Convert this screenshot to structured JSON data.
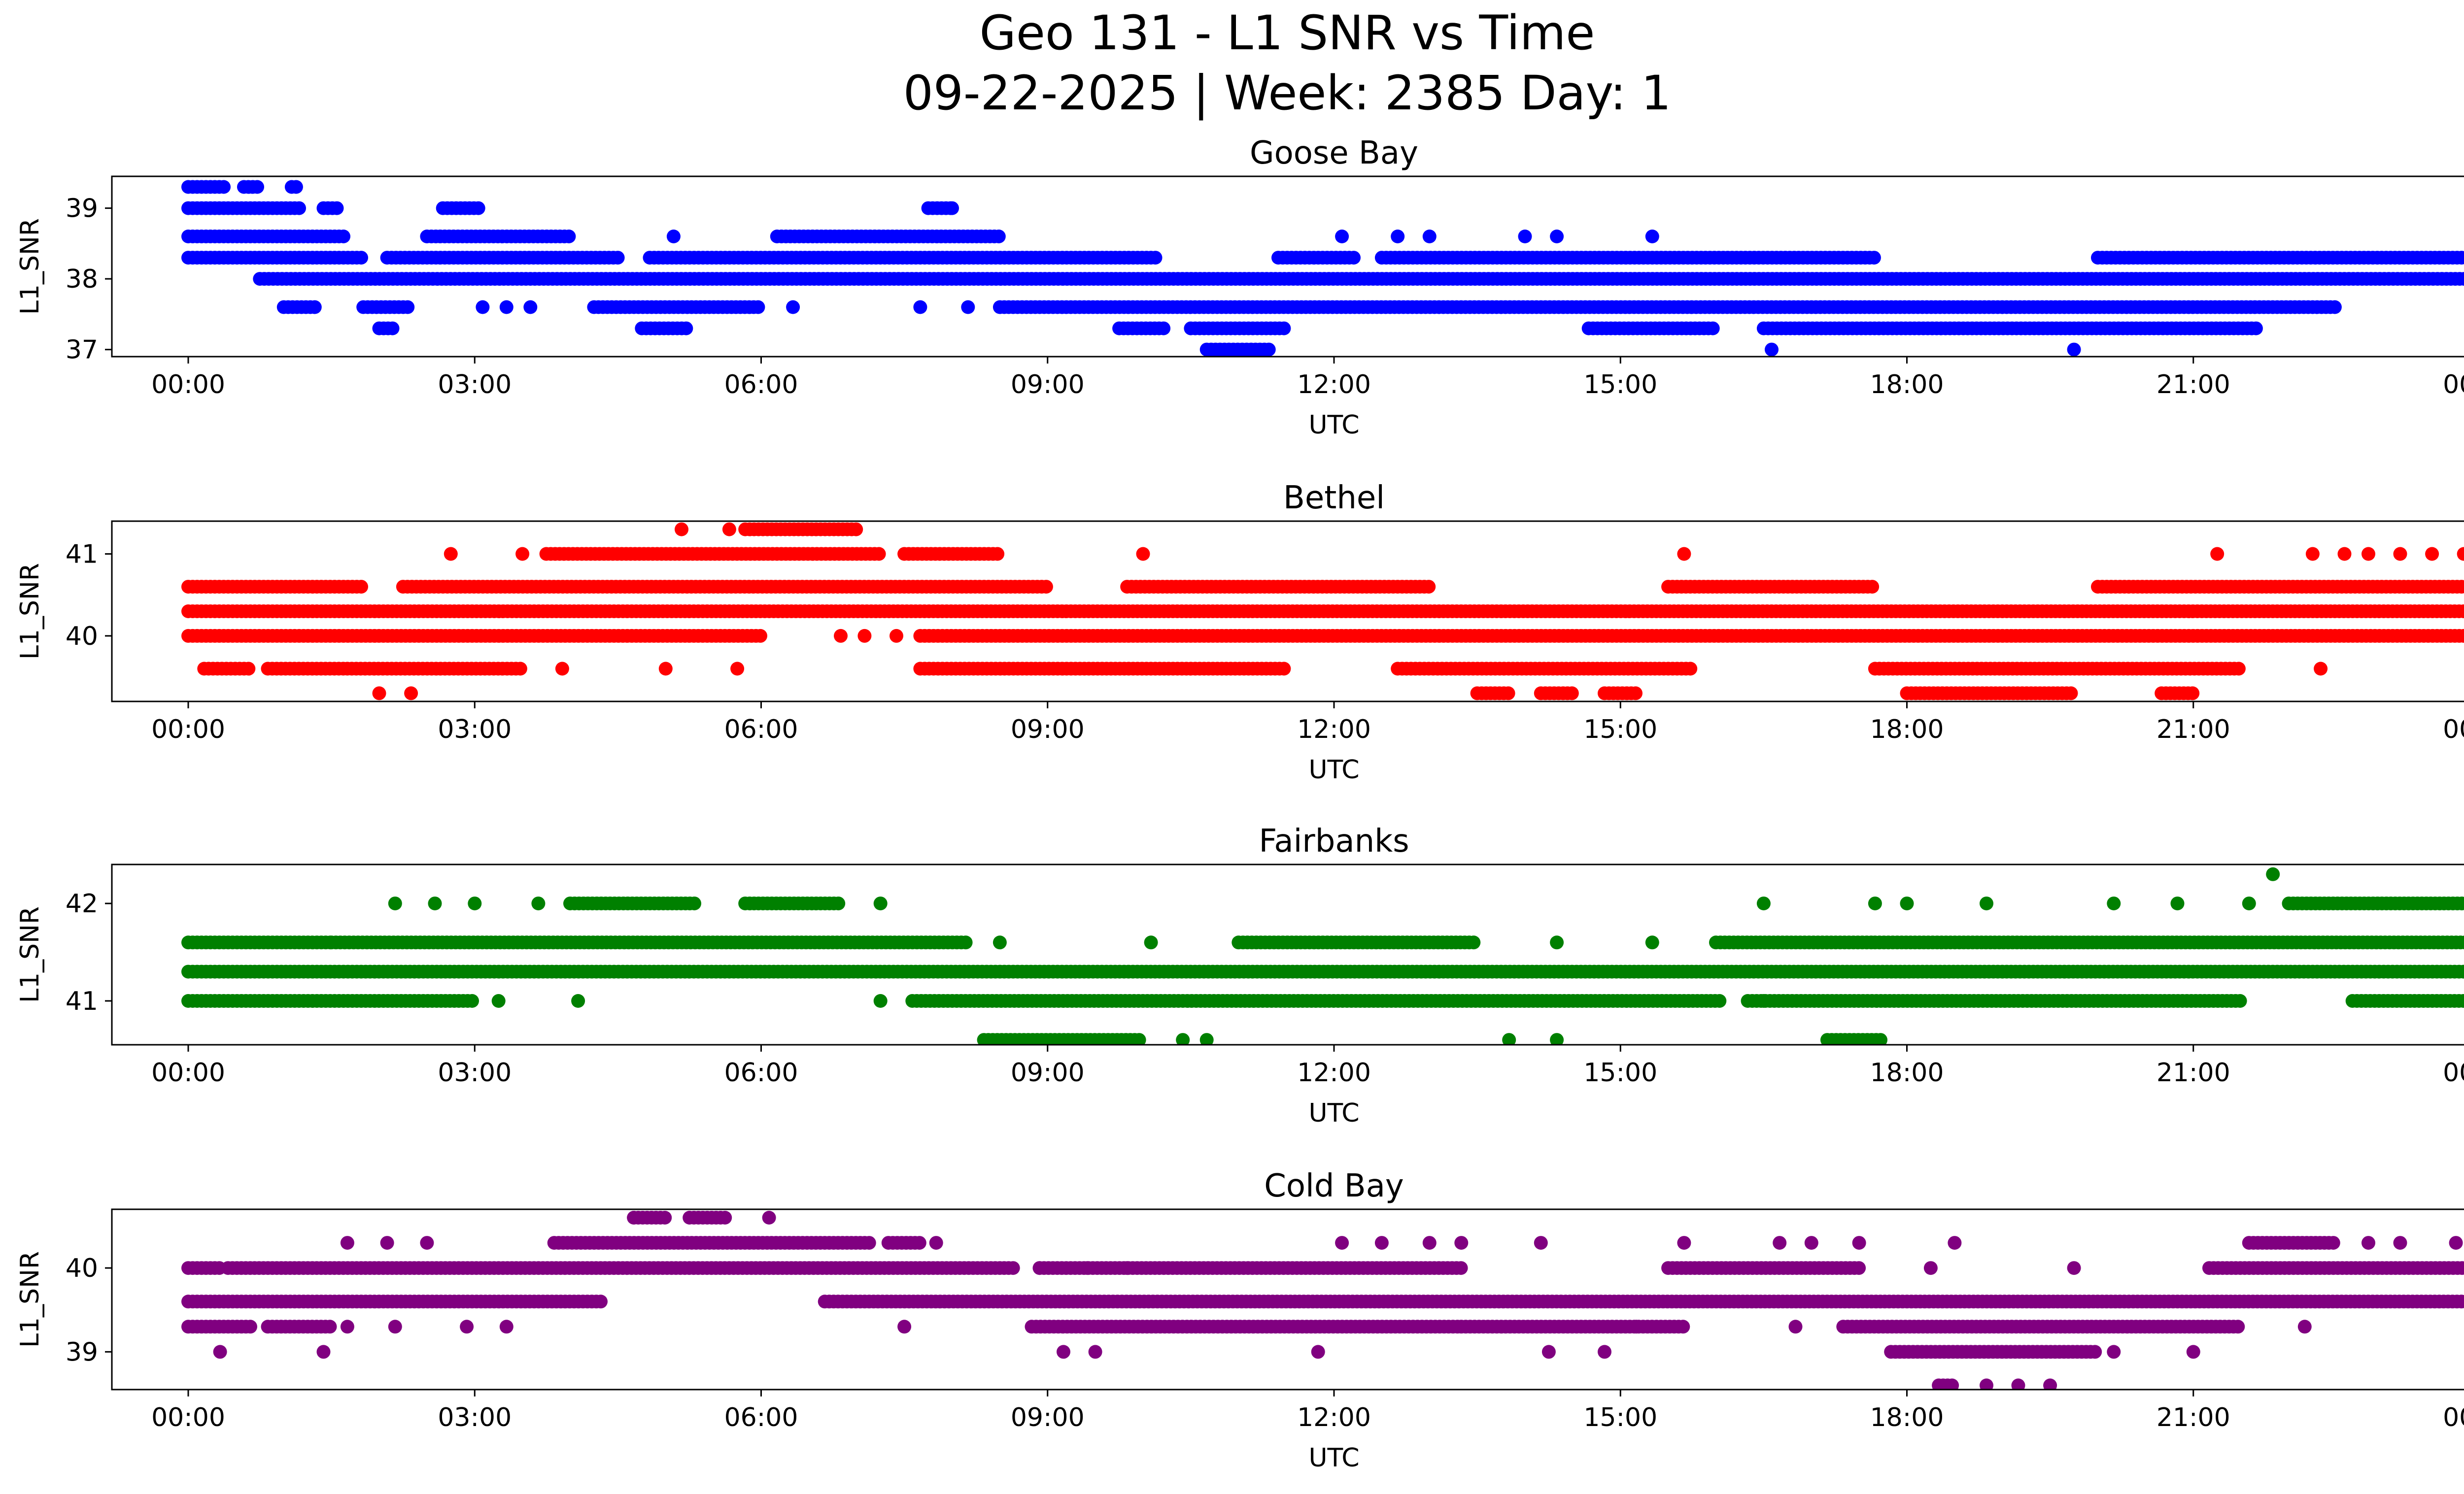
{
  "figure": {
    "title": "Geo 131 - L1 SNR vs Time",
    "subtitle": "09-22-2025 | Week: 2385 Day: 1"
  },
  "chart_data": [
    {
      "type": "scatter",
      "title": "Goose Bay",
      "xlabel": "UTC",
      "ylabel": "L1_SNR",
      "color": "#0000ff",
      "xlim": [
        "-00:48",
        "24:48"
      ],
      "x_ticks": [
        "00:00",
        "03:00",
        "06:00",
        "09:00",
        "12:00",
        "15:00",
        "18:00",
        "21:00",
        "00:00"
      ],
      "ylim": [
        36.9,
        39.45
      ],
      "y_ticks": [
        37,
        38,
        39
      ],
      "grid": false,
      "bands": [
        {
          "y": 39.3,
          "segments": [
            [
              "00:00",
              "00:25"
            ],
            [
              "00:35",
              "00:45"
            ],
            [
              "01:05",
              "01:10"
            ]
          ]
        },
        {
          "y": 39.0,
          "segments": [
            [
              "00:00",
              "01:10"
            ],
            [
              "01:25",
              "01:35"
            ],
            [
              "02:40",
              "03:05"
            ],
            [
              "07:45",
              "08:00"
            ]
          ]
        },
        {
          "y": 38.6,
          "segments": [
            [
              "00:00",
              "01:40"
            ],
            [
              "02:30",
              "04:00"
            ],
            [
              "06:10",
              "08:30"
            ]
          ]
        },
        {
          "y": 38.3,
          "segments": [
            [
              "00:00",
              "01:50"
            ],
            [
              "02:05",
              "04:30"
            ],
            [
              "04:50",
              "10:10"
            ],
            [
              "11:25",
              "12:15"
            ],
            [
              "12:30",
              "17:40"
            ],
            [
              "20:00",
              "24:00"
            ]
          ]
        },
        {
          "y": 38.0,
          "segments": [
            [
              "00:45",
              "24:00"
            ]
          ]
        },
        {
          "y": 37.6,
          "segments": [
            [
              "01:00",
              "01:20"
            ],
            [
              "01:50",
              "02:20"
            ],
            [
              "04:15",
              "06:00"
            ],
            [
              "08:30",
              "22:30"
            ]
          ]
        },
        {
          "y": 37.3,
          "segments": [
            [
              "02:00",
              "02:10"
            ],
            [
              "04:45",
              "05:15"
            ],
            [
              "09:45",
              "10:15"
            ],
            [
              "10:30",
              "11:30"
            ],
            [
              "14:40",
              "16:00"
            ],
            [
              "16:30",
              "21:40"
            ]
          ]
        },
        {
          "y": 37.0,
          "segments": [
            [
              "10:40",
              "11:20"
            ]
          ]
        }
      ],
      "scatter_points": [
        {
          "y": 38.6,
          "x": [
            "05:05",
            "12:05",
            "12:40",
            "13:00",
            "14:00",
            "14:20",
            "15:20"
          ]
        },
        {
          "y": 37.6,
          "x": [
            "03:05",
            "03:20",
            "03:35",
            "06:20",
            "07:40",
            "08:10"
          ]
        },
        {
          "y": 37.0,
          "x": [
            "16:35",
            "19:45"
          ]
        },
        {
          "y": 39.0,
          "x": [
            "08:00"
          ]
        }
      ]
    },
    {
      "type": "scatter",
      "title": "Bethel",
      "xlabel": "UTC",
      "ylabel": "L1_SNR",
      "color": "#ff0000",
      "xlim": [
        "-00:48",
        "24:48"
      ],
      "x_ticks": [
        "00:00",
        "03:00",
        "06:00",
        "09:00",
        "12:00",
        "15:00",
        "18:00",
        "21:00",
        "00:00"
      ],
      "ylim": [
        39.2,
        41.4
      ],
      "y_ticks": [
        40,
        41
      ],
      "grid": false,
      "bands": [
        {
          "y": 41.3,
          "segments": [
            [
              "05:50",
              "07:00"
            ]
          ]
        },
        {
          "y": 41.0,
          "segments": [
            [
              "03:45",
              "07:15"
            ],
            [
              "07:30",
              "08:30"
            ]
          ]
        },
        {
          "y": 40.6,
          "segments": [
            [
              "00:00",
              "01:50"
            ],
            [
              "02:15",
              "09:00"
            ],
            [
              "09:50",
              "13:00"
            ],
            [
              "15:30",
              "17:40"
            ],
            [
              "20:00",
              "24:00"
            ]
          ]
        },
        {
          "y": 40.3,
          "segments": [
            [
              "00:00",
              "24:00"
            ]
          ]
        },
        {
          "y": 40.0,
          "segments": [
            [
              "00:00",
              "06:00"
            ],
            [
              "07:40",
              "24:00"
            ]
          ]
        },
        {
          "y": 39.6,
          "segments": [
            [
              "00:10",
              "00:40"
            ],
            [
              "00:50",
              "01:40"
            ],
            [
              "01:40",
              "03:30"
            ],
            [
              "07:40",
              "11:30"
            ],
            [
              "12:40",
              "15:45"
            ],
            [
              "17:40",
              "21:30"
            ]
          ]
        },
        {
          "y": 39.3,
          "segments": [
            [
              "13:30",
              "13:50"
            ],
            [
              "14:10",
              "14:30"
            ],
            [
              "14:50",
              "15:10"
            ],
            [
              "18:00",
              "19:45"
            ],
            [
              "20:40",
              "21:00"
            ]
          ]
        }
      ],
      "scatter_points": [
        {
          "y": 41.3,
          "x": [
            "05:10",
            "05:40"
          ]
        },
        {
          "y": 41.0,
          "x": [
            "02:45",
            "03:30",
            "10:00",
            "15:40",
            "21:15",
            "22:15",
            "22:35",
            "22:50",
            "23:10",
            "23:30",
            "23:50"
          ]
        },
        {
          "y": 39.6,
          "x": [
            "03:55",
            "05:00",
            "05:45",
            "22:20"
          ]
        },
        {
          "y": 39.3,
          "x": [
            "02:00",
            "02:20"
          ]
        },
        {
          "y": 40.0,
          "x": [
            "06:50",
            "07:05",
            "07:25"
          ]
        }
      ]
    },
    {
      "type": "scatter",
      "title": "Fairbanks",
      "xlabel": "UTC",
      "ylabel": "L1_SNR",
      "color": "#008000",
      "xlim": [
        "-00:48",
        "24:48"
      ],
      "x_ticks": [
        "00:00",
        "03:00",
        "06:00",
        "09:00",
        "12:00",
        "15:00",
        "18:00",
        "21:00",
        "00:00"
      ],
      "ylim": [
        40.55,
        42.4
      ],
      "y_ticks": [
        41,
        42
      ],
      "grid": false,
      "bands": [
        {
          "y": 42.0,
          "segments": [
            [
              "04:00",
              "05:20"
            ],
            [
              "05:50",
              "06:50"
            ],
            [
              "22:00",
              "24:00"
            ]
          ]
        },
        {
          "y": 41.6,
          "segments": [
            [
              "00:00",
              "01:30"
            ],
            [
              "01:30",
              "08:10"
            ],
            [
              "11:00",
              "13:30"
            ],
            [
              "16:00",
              "17:40"
            ],
            [
              "17:40",
              "24:00"
            ]
          ]
        },
        {
          "y": 41.3,
          "segments": [
            [
              "00:00",
              "24:00"
            ]
          ]
        },
        {
          "y": 41.0,
          "segments": [
            [
              "00:00",
              "03:00"
            ],
            [
              "07:35",
              "16:05"
            ],
            [
              "16:20",
              "21:30"
            ],
            [
              "22:40",
              "24:00"
            ]
          ]
        },
        {
          "y": 40.6,
          "segments": [
            [
              "08:20",
              "10:00"
            ],
            [
              "17:10",
              "17:45"
            ]
          ]
        }
      ],
      "scatter_points": [
        {
          "y": 42.3,
          "x": [
            "21:50"
          ]
        },
        {
          "y": 42.0,
          "x": [
            "02:10",
            "02:35",
            "03:00",
            "03:40",
            "07:15",
            "16:30",
            "17:40",
            "18:00",
            "18:50",
            "20:10",
            "20:50",
            "21:35"
          ]
        },
        {
          "y": 41.6,
          "x": [
            "08:30",
            "10:05",
            "14:20",
            "15:20"
          ]
        },
        {
          "y": 41.0,
          "x": [
            "03:15",
            "04:05",
            "07:15",
            "16:30"
          ]
        },
        {
          "y": 40.6,
          "x": [
            "10:25",
            "10:40",
            "13:50",
            "14:20"
          ]
        }
      ]
    },
    {
      "type": "scatter",
      "title": "Cold Bay",
      "xlabel": "UTC",
      "ylabel": "L1_SNR",
      "color": "#800080",
      "xlim": [
        "-00:48",
        "24:48"
      ],
      "x_ticks": [
        "00:00",
        "03:00",
        "06:00",
        "09:00",
        "12:00",
        "15:00",
        "18:00",
        "21:00",
        "00:00"
      ],
      "ylim": [
        38.55,
        40.7
      ],
      "y_ticks": [
        39,
        40
      ],
      "grid": false,
      "bands": [
        {
          "y": 40.6,
          "segments": [
            [
              "04:40",
              "05:00"
            ],
            [
              "05:15",
              "05:40"
            ]
          ]
        },
        {
          "y": 40.3,
          "segments": [
            [
              "03:50",
              "07:10"
            ],
            [
              "07:20",
              "07:40"
            ],
            [
              "21:35",
              "22:30"
            ]
          ]
        },
        {
          "y": 40.0,
          "segments": [
            [
              "00:00",
              "00:20"
            ],
            [
              "00:25",
              "08:40"
            ],
            [
              "08:55",
              "13:20"
            ],
            [
              "15:30",
              "17:30"
            ],
            [
              "21:10",
              "24:00"
            ]
          ]
        },
        {
          "y": 39.6,
          "segments": [
            [
              "00:00",
              "04:20"
            ],
            [
              "06:40",
              "24:00"
            ]
          ]
        },
        {
          "y": 39.3,
          "segments": [
            [
              "00:00",
              "00:40"
            ],
            [
              "00:50",
              "01:30"
            ],
            [
              "08:50",
              "13:20"
            ],
            [
              "13:20",
              "15:40"
            ],
            [
              "17:20",
              "21:30"
            ]
          ]
        },
        {
          "y": 39.0,
          "segments": [
            [
              "17:50",
              "20:00"
            ]
          ]
        },
        {
          "y": 38.6,
          "segments": [
            [
              "18:20",
              "18:30"
            ]
          ]
        }
      ],
      "scatter_points": [
        {
          "y": 40.6,
          "x": [
            "04:40",
            "06:05"
          ]
        },
        {
          "y": 40.3,
          "x": [
            "01:40",
            "02:05",
            "02:30",
            "07:50",
            "12:05",
            "12:30",
            "13:00",
            "13:20",
            "14:10",
            "15:40",
            "16:40",
            "17:00",
            "17:30",
            "18:30",
            "22:50",
            "23:10",
            "23:45"
          ]
        },
        {
          "y": 39.3,
          "x": [
            "01:40",
            "02:10",
            "02:55",
            "03:20",
            "07:30",
            "15:10",
            "16:50",
            "22:10",
            "24:00"
          ]
        },
        {
          "y": 39.0,
          "x": [
            "00:20",
            "01:25",
            "09:10",
            "09:30",
            "11:50",
            "14:15",
            "14:50",
            "20:10",
            "21:00"
          ]
        },
        {
          "y": 38.6,
          "x": [
            "18:50",
            "19:10",
            "19:30"
          ]
        },
        {
          "y": 40.0,
          "x": [
            "08:55",
            "09:25",
            "09:50",
            "18:15",
            "19:45"
          ]
        }
      ]
    }
  ]
}
